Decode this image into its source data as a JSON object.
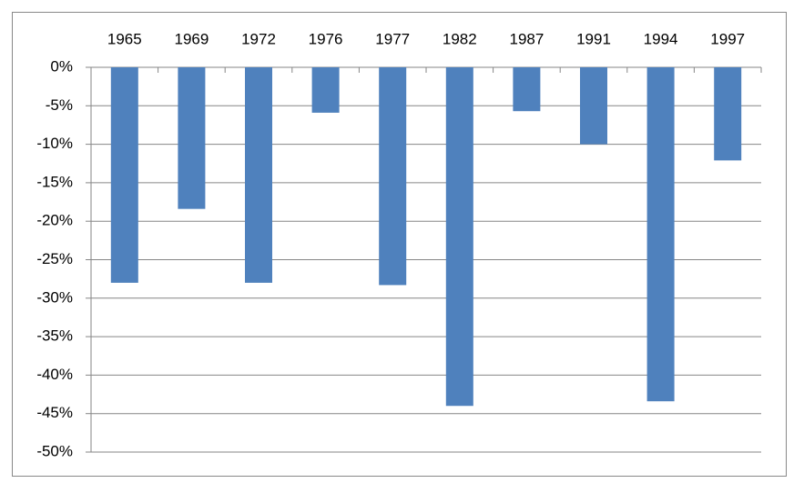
{
  "chart_data": {
    "type": "bar",
    "categories": [
      "1965",
      "1969",
      "1972",
      "1976",
      "1977",
      "1982",
      "1987",
      "1991",
      "1994",
      "1997"
    ],
    "values": [
      -28,
      -18.4,
      -28,
      -5.9,
      -28.3,
      -44,
      -5.7,
      -10,
      -43.4,
      -12.1
    ],
    "color": "#4f81bd",
    "ylim": [
      -50,
      0
    ],
    "yticks": [
      {
        "value": 0,
        "label": "0%"
      },
      {
        "value": -5,
        "label": "-5%"
      },
      {
        "value": -10,
        "label": "-10%"
      },
      {
        "value": -15,
        "label": "-15%"
      },
      {
        "value": -20,
        "label": "-20%"
      },
      {
        "value": -25,
        "label": "-25%"
      },
      {
        "value": -30,
        "label": "-30%"
      },
      {
        "value": -35,
        "label": "-35%"
      },
      {
        "value": -40,
        "label": "-40%"
      },
      {
        "value": -45,
        "label": "-45%"
      },
      {
        "value": -50,
        "label": "-50%"
      }
    ],
    "grid": true
  }
}
